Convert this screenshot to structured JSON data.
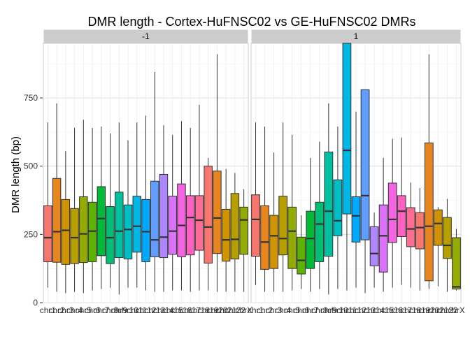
{
  "chart_data": {
    "type": "boxplot",
    "title": "DMR length - Cortex-HuFNSC02 vs GE-HuFNSC02 DMRs",
    "xlabel": "",
    "ylabel": "DMR length (bp)",
    "ylim": [
      0,
      950
    ],
    "y_ticks": [
      0,
      250,
      500,
      750
    ],
    "grid": true,
    "legend": "none",
    "categories": [
      "chr1",
      "chr2",
      "chr3",
      "chr4",
      "chr5",
      "chr6",
      "chr7",
      "chr8",
      "chr9",
      "chr10",
      "chr11",
      "chr12",
      "chr13",
      "chr14",
      "chr15",
      "chr16",
      "chr17",
      "chr18",
      "chr19",
      "chr20",
      "chr21",
      "chr22",
      "chrX"
    ],
    "colors": [
      "#F8766D",
      "#E7851E",
      "#D29300",
      "#B79F00",
      "#93AA00",
      "#5BB300",
      "#00BA38",
      "#00BF74",
      "#00C19F",
      "#00BFC4",
      "#00B8E7",
      "#00A9FF",
      "#619CFF",
      "#AE87FF",
      "#DB72FB",
      "#F564E3",
      "#FF61C3",
      "#FF6C91",
      "#F8766D",
      "#E7851E",
      "#D29300",
      "#B79F00",
      "#93AA00"
    ],
    "panels": [
      {
        "label": "-1",
        "boxes": [
          {
            "min": 55,
            "q1": 150,
            "median": 238,
            "q3": 355,
            "max": 660
          },
          {
            "min": 40,
            "q1": 148,
            "median": 260,
            "q3": 455,
            "max": 730
          },
          {
            "min": 35,
            "q1": 140,
            "median": 265,
            "q3": 378,
            "max": 555
          },
          {
            "min": 40,
            "q1": 143,
            "median": 238,
            "q3": 345,
            "max": 640
          },
          {
            "min": 35,
            "q1": 147,
            "median": 252,
            "q3": 388,
            "max": 670
          },
          {
            "min": 45,
            "q1": 150,
            "median": 262,
            "q3": 368,
            "max": 640
          },
          {
            "min": 50,
            "q1": 172,
            "median": 308,
            "q3": 425,
            "max": 645
          },
          {
            "min": 55,
            "q1": 143,
            "median": 238,
            "q3": 352,
            "max": 620
          },
          {
            "min": 30,
            "q1": 165,
            "median": 262,
            "q3": 405,
            "max": 660
          },
          {
            "min": 55,
            "q1": 160,
            "median": 268,
            "q3": 358,
            "max": 595
          },
          {
            "min": 55,
            "q1": 185,
            "median": 280,
            "q3": 390,
            "max": 660
          },
          {
            "min": 45,
            "q1": 150,
            "median": 260,
            "q3": 378,
            "max": 685
          },
          {
            "min": 40,
            "q1": 168,
            "median": 230,
            "q3": 445,
            "max": 845
          },
          {
            "min": 40,
            "q1": 165,
            "median": 240,
            "q3": 470,
            "max": 650
          },
          {
            "min": 45,
            "q1": 177,
            "median": 262,
            "q3": 390,
            "max": 615
          },
          {
            "min": 45,
            "q1": 168,
            "median": 283,
            "q3": 435,
            "max": 665
          },
          {
            "min": 40,
            "q1": 175,
            "median": 312,
            "q3": 392,
            "max": 640
          },
          {
            "min": 45,
            "q1": 192,
            "median": 302,
            "q3": 392,
            "max": 725
          },
          {
            "min": 45,
            "q1": 145,
            "median": 277,
            "q3": 500,
            "max": 530
          },
          {
            "min": 40,
            "q1": 180,
            "median": 310,
            "q3": 482,
            "max": 910
          },
          {
            "min": 40,
            "q1": 152,
            "median": 230,
            "q3": 342,
            "max": 490
          },
          {
            "min": 40,
            "q1": 160,
            "median": 232,
            "q3": 400,
            "max": 475
          },
          {
            "min": 40,
            "q1": 177,
            "median": 303,
            "q3": 350,
            "max": 415
          }
        ]
      },
      {
        "label": "1",
        "boxes": [
          {
            "min": 65,
            "q1": 170,
            "median": 305,
            "q3": 395,
            "max": 660
          },
          {
            "min": 40,
            "q1": 122,
            "median": 222,
            "q3": 355,
            "max": 645
          },
          {
            "min": 40,
            "q1": 125,
            "median": 245,
            "q3": 320,
            "max": 550
          },
          {
            "min": 40,
            "q1": 175,
            "median": 235,
            "q3": 390,
            "max": 660
          },
          {
            "min": 45,
            "q1": 125,
            "median": 262,
            "q3": 350,
            "max": 615
          },
          {
            "min": 50,
            "q1": 105,
            "median": 155,
            "q3": 240,
            "max": 320
          },
          {
            "min": 40,
            "q1": 125,
            "median": 235,
            "q3": 335,
            "max": 530
          },
          {
            "min": 50,
            "q1": 150,
            "median": 288,
            "q3": 368,
            "max": 590
          },
          {
            "min": 30,
            "q1": 170,
            "median": 335,
            "q3": 552,
            "max": 730
          },
          {
            "min": 50,
            "q1": 245,
            "median": 300,
            "q3": 450,
            "max": 645
          },
          {
            "min": 45,
            "q1": 325,
            "median": 558,
            "q3": 960,
            "max": 960
          },
          {
            "min": 55,
            "q1": 222,
            "median": 318,
            "q3": 388,
            "max": 700
          },
          {
            "min": 35,
            "q1": 230,
            "median": 392,
            "q3": 780,
            "max": 780
          },
          {
            "min": 55,
            "q1": 135,
            "median": 180,
            "q3": 278,
            "max": 330
          },
          {
            "min": 40,
            "q1": 112,
            "median": 245,
            "q3": 358,
            "max": 530
          },
          {
            "min": 55,
            "q1": 220,
            "median": 305,
            "q3": 438,
            "max": 600
          },
          {
            "min": 65,
            "q1": 242,
            "median": 335,
            "q3": 392,
            "max": 605
          },
          {
            "min": 55,
            "q1": 205,
            "median": 270,
            "q3": 348,
            "max": 440
          },
          {
            "min": 45,
            "q1": 197,
            "median": 275,
            "q3": 330,
            "max": 420
          },
          {
            "min": 50,
            "q1": 80,
            "median": 280,
            "q3": 585,
            "max": 910
          },
          {
            "min": 60,
            "q1": 210,
            "median": 290,
            "q3": 340,
            "max": 350
          },
          {
            "min": 40,
            "q1": 162,
            "median": 210,
            "q3": 312,
            "max": 380
          },
          {
            "min": 45,
            "q1": 50,
            "median": 58,
            "q3": 238,
            "max": 270
          }
        ]
      }
    ]
  }
}
